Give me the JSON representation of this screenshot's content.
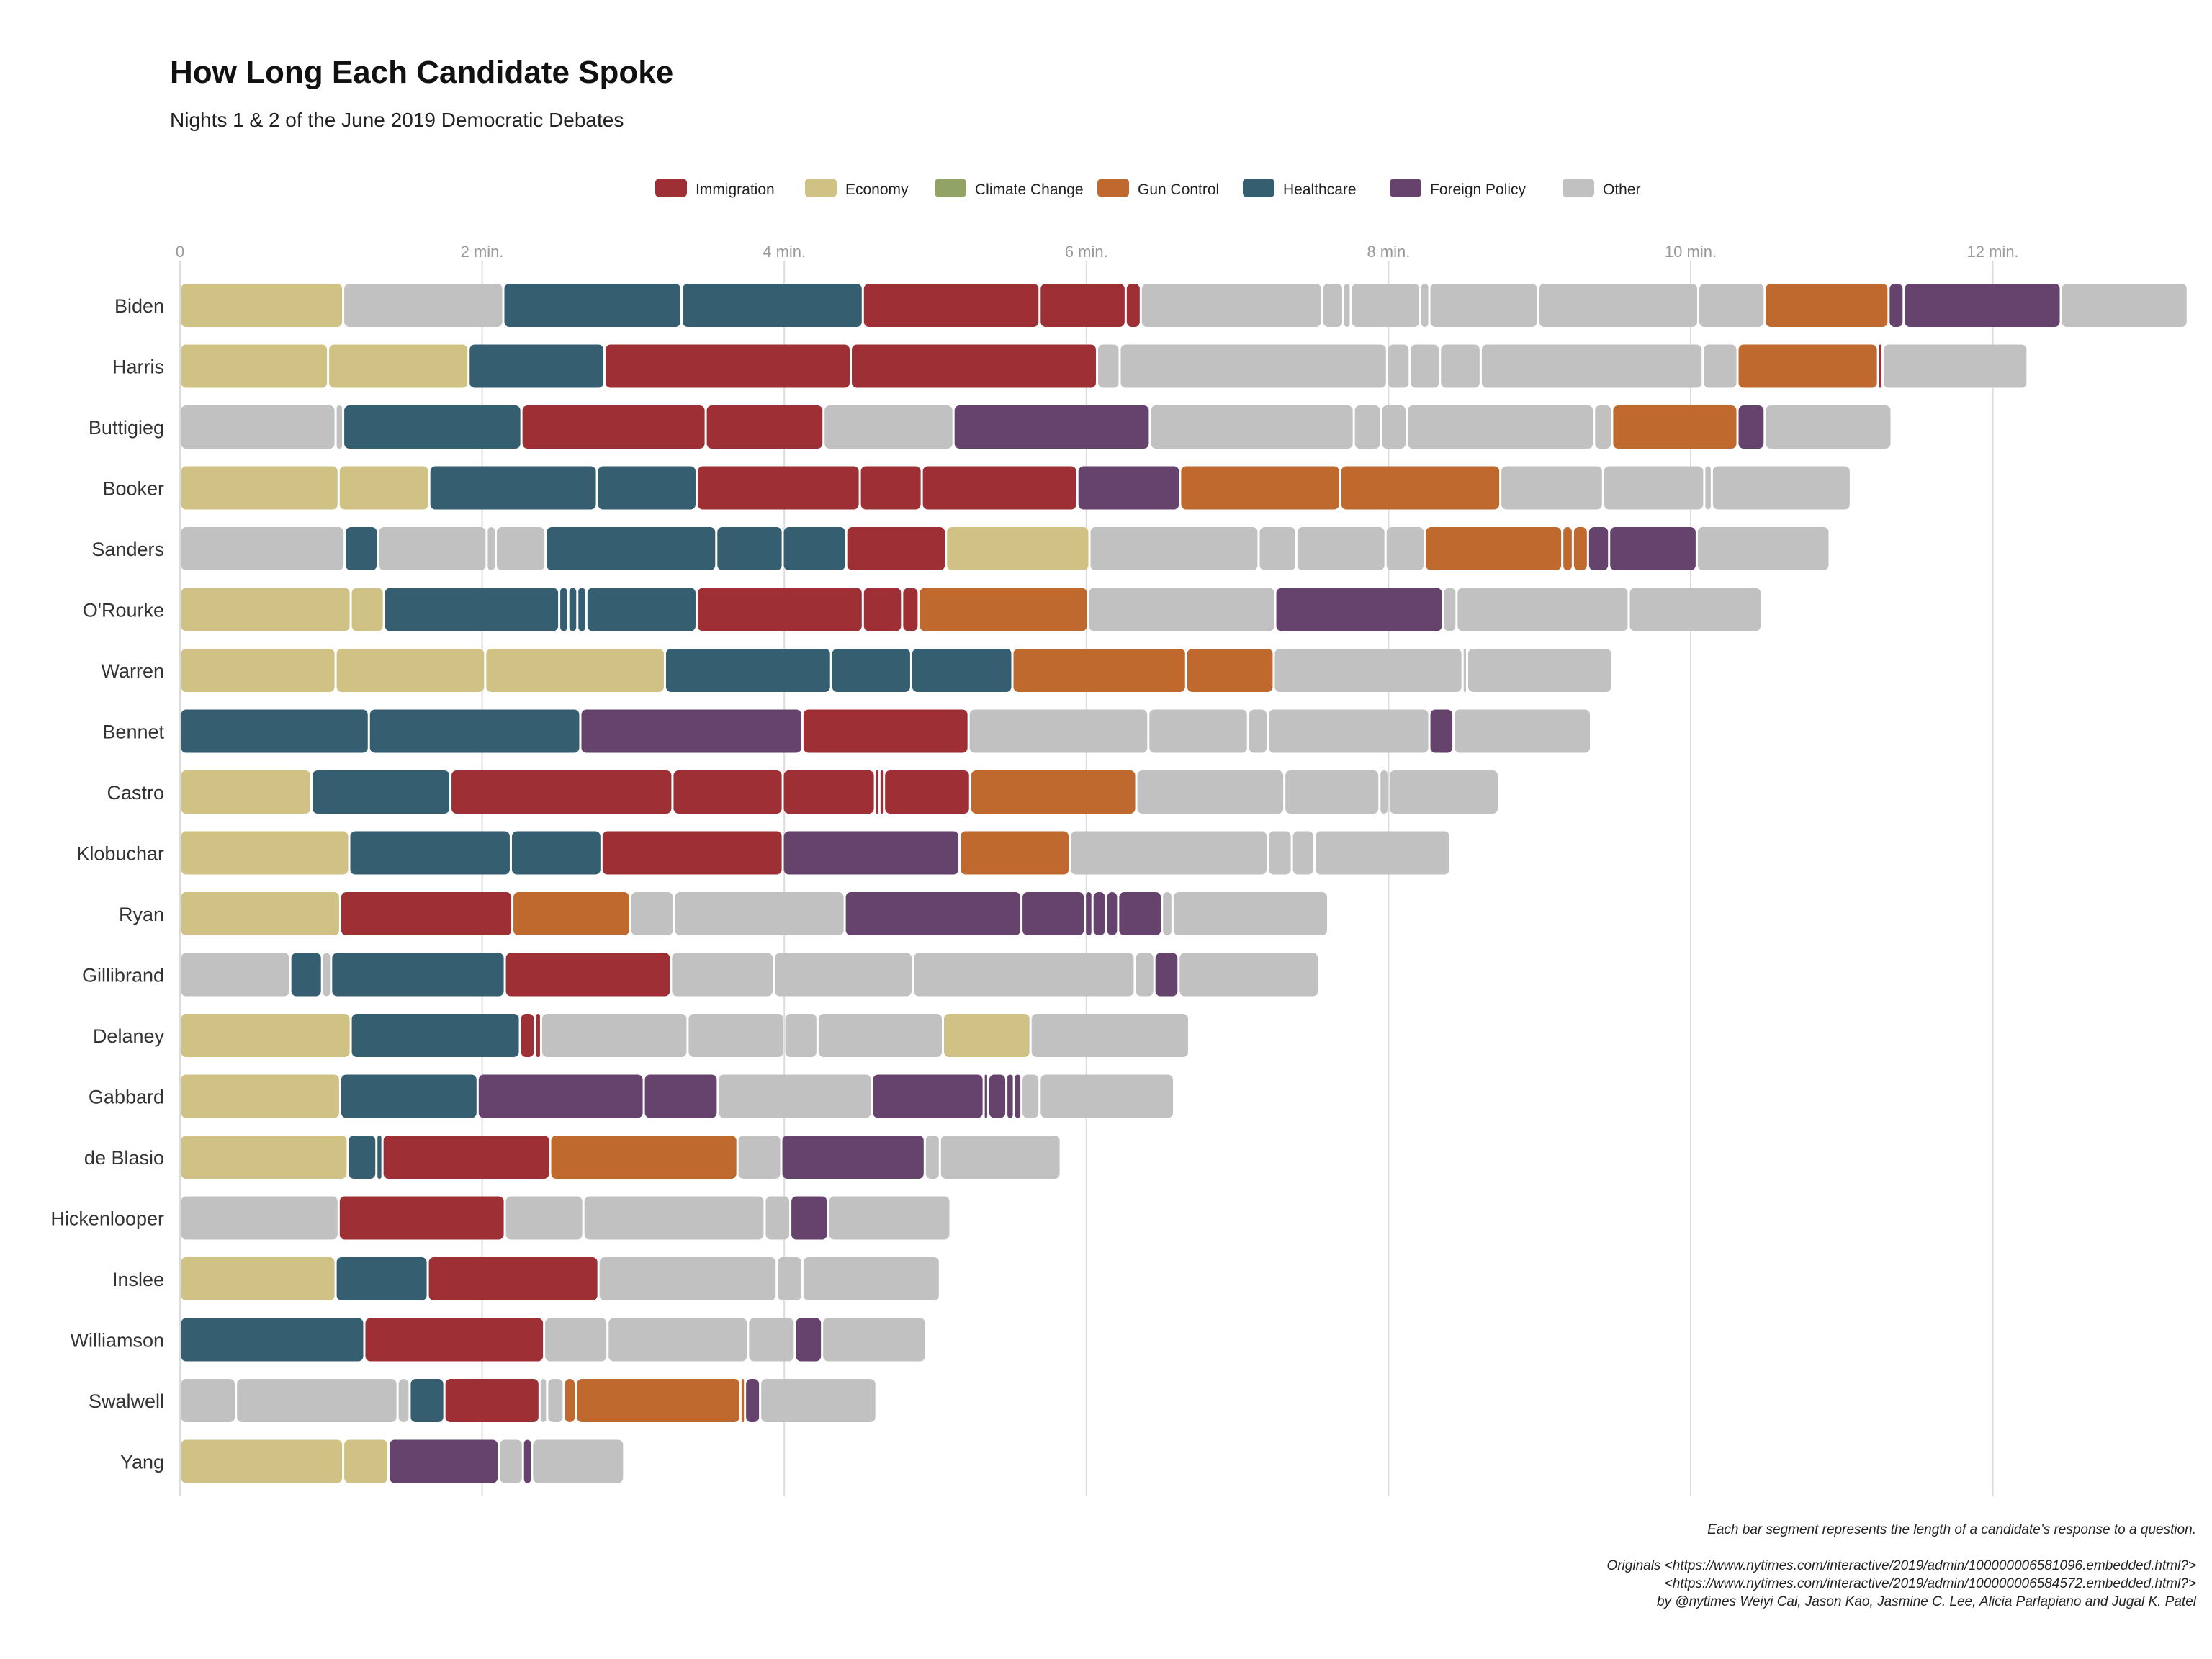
{
  "colors": {
    "Immigration": "#9e3035",
    "Economy": "#d0c285",
    "Climate Change": "#93a366",
    "Gun Control": "#bf692e",
    "Healthcare": "#355f70",
    "Foreign Policy": "#66436d",
    "Other": "#c1c1c1"
  },
  "chart_data": {
    "type": "bar",
    "orientation": "horizontal-stacked",
    "title": "How Long Each Candidate Spoke",
    "subtitle": "Nights 1 & 2 of the June 2019 Democratic Debates",
    "x_unit": "minutes",
    "xlim": [
      0,
      13.3
    ],
    "x_ticks": [
      0,
      2,
      4,
      6,
      8,
      10,
      12
    ],
    "x_tick_labels": [
      "0",
      "2 min.",
      "4 min.",
      "6 min.",
      "8 min.",
      "10 min.",
      "12 min."
    ],
    "legend": [
      "Immigration",
      "Economy",
      "Climate Change",
      "Gun Control",
      "Healthcare",
      "Foreign Policy",
      "Other"
    ],
    "legend_position": "top",
    "grid": "vertical",
    "candidates": [
      {
        "name": "Biden",
        "segments": [
          [
            "Economy",
            1.08
          ],
          [
            "Other",
            1.06
          ],
          [
            "Healthcare",
            1.18
          ],
          [
            "Healthcare",
            1.2
          ],
          [
            "Immigration",
            1.17
          ],
          [
            "Immigration",
            0.57
          ],
          [
            "Immigration",
            0.1
          ],
          [
            "Other",
            1.2
          ],
          [
            "Other",
            0.14
          ],
          [
            "Other",
            0.05
          ],
          [
            "Other",
            0.46
          ],
          [
            "Other",
            0.06
          ],
          [
            "Other",
            0.72
          ],
          [
            "Other",
            1.06
          ],
          [
            "Other",
            0.44
          ],
          [
            "Gun Control",
            0.82
          ],
          [
            "Foreign Policy",
            0.1
          ],
          [
            "Foreign Policy",
            1.04
          ],
          [
            "Other",
            0.84
          ]
        ]
      },
      {
        "name": "Harris",
        "segments": [
          [
            "Economy",
            0.98
          ],
          [
            "Economy",
            0.93
          ],
          [
            "Healthcare",
            0.9
          ],
          [
            "Immigration",
            1.63
          ],
          [
            "Immigration",
            1.63
          ],
          [
            "Other",
            0.15
          ],
          [
            "Other",
            1.77
          ],
          [
            "Other",
            0.15
          ],
          [
            "Other",
            0.2
          ],
          [
            "Other",
            0.27
          ],
          [
            "Other",
            1.47
          ],
          [
            "Other",
            0.23
          ],
          [
            "Gun Control",
            0.93
          ],
          [
            "Immigration",
            0.03
          ],
          [
            "Other",
            0.96
          ]
        ]
      },
      {
        "name": "Buttigieg",
        "segments": [
          [
            "Other",
            1.03
          ],
          [
            "Other",
            0.05
          ],
          [
            "Healthcare",
            1.18
          ],
          [
            "Immigration",
            1.22
          ],
          [
            "Immigration",
            0.78
          ],
          [
            "Other",
            0.86
          ],
          [
            "Foreign Policy",
            1.3
          ],
          [
            "Other",
            1.35
          ],
          [
            "Other",
            0.18
          ],
          [
            "Other",
            0.17
          ],
          [
            "Other",
            1.24
          ],
          [
            "Other",
            0.12
          ],
          [
            "Gun Control",
            0.83
          ],
          [
            "Foreign Policy",
            0.18
          ],
          [
            "Other",
            0.84
          ]
        ]
      },
      {
        "name": "Booker",
        "segments": [
          [
            "Economy",
            1.05
          ],
          [
            "Economy",
            0.6
          ],
          [
            "Healthcare",
            1.11
          ],
          [
            "Healthcare",
            0.66
          ],
          [
            "Immigration",
            1.08
          ],
          [
            "Immigration",
            0.41
          ],
          [
            "Immigration",
            1.03
          ],
          [
            "Foreign Policy",
            0.68
          ],
          [
            "Gun Control",
            1.06
          ],
          [
            "Gun Control",
            1.06
          ],
          [
            "Other",
            0.68
          ],
          [
            "Other",
            0.67
          ],
          [
            "Other",
            0.05
          ],
          [
            "Other",
            0.92
          ]
        ]
      },
      {
        "name": "Sanders",
        "segments": [
          [
            "Other",
            1.09
          ],
          [
            "Healthcare",
            0.22
          ],
          [
            "Other",
            0.72
          ],
          [
            "Other",
            0.06
          ],
          [
            "Other",
            0.33
          ],
          [
            "Healthcare",
            1.13
          ],
          [
            "Healthcare",
            0.44
          ],
          [
            "Healthcare",
            0.42
          ],
          [
            "Immigration",
            0.66
          ],
          [
            "Economy",
            0.95
          ],
          [
            "Other",
            1.12
          ],
          [
            "Other",
            0.25
          ],
          [
            "Other",
            0.59
          ],
          [
            "Other",
            0.26
          ],
          [
            "Gun Control",
            0.91
          ],
          [
            "Gun Control",
            0.07
          ],
          [
            "Gun Control",
            0.1
          ],
          [
            "Foreign Policy",
            0.14
          ],
          [
            "Foreign Policy",
            0.58
          ],
          [
            "Other",
            0.88
          ]
        ]
      },
      {
        "name": "O'Rourke",
        "segments": [
          [
            "Economy",
            1.13
          ],
          [
            "Economy",
            0.22
          ],
          [
            "Healthcare",
            1.16
          ],
          [
            "Healthcare",
            0.06
          ],
          [
            "Healthcare",
            0.06
          ],
          [
            "Healthcare",
            0.06
          ],
          [
            "Healthcare",
            0.73
          ],
          [
            "Immigration",
            1.1
          ],
          [
            "Immigration",
            0.26
          ],
          [
            "Immigration",
            0.11
          ],
          [
            "Gun Control",
            1.12
          ],
          [
            "Other",
            1.24
          ],
          [
            "Foreign Policy",
            1.11
          ],
          [
            "Other",
            0.09
          ],
          [
            "Other",
            1.14
          ],
          [
            "Other",
            0.88
          ]
        ]
      },
      {
        "name": "Warren",
        "segments": [
          [
            "Economy",
            1.03
          ],
          [
            "Economy",
            0.99
          ],
          [
            "Economy",
            1.19
          ],
          [
            "Healthcare",
            1.1
          ],
          [
            "Healthcare",
            0.53
          ],
          [
            "Healthcare",
            0.67
          ],
          [
            "Gun Control",
            1.15
          ],
          [
            "Gun Control",
            0.58
          ],
          [
            "Other",
            1.25
          ],
          [
            "Other",
            0.03
          ],
          [
            "Other",
            0.96
          ]
        ]
      },
      {
        "name": "Bennet",
        "segments": [
          [
            "Healthcare",
            1.25
          ],
          [
            "Healthcare",
            1.4
          ],
          [
            "Foreign Policy",
            1.47
          ],
          [
            "Immigration",
            1.1
          ],
          [
            "Other",
            1.19
          ],
          [
            "Other",
            0.66
          ],
          [
            "Other",
            0.13
          ],
          [
            "Other",
            1.07
          ],
          [
            "Foreign Policy",
            0.16
          ],
          [
            "Other",
            0.91
          ]
        ]
      },
      {
        "name": "Castro",
        "segments": [
          [
            "Economy",
            0.87
          ],
          [
            "Healthcare",
            0.92
          ],
          [
            "Immigration",
            1.47
          ],
          [
            "Immigration",
            0.73
          ],
          [
            "Immigration",
            0.61
          ],
          [
            "Immigration",
            0.03
          ],
          [
            "Immigration",
            0.03
          ],
          [
            "Immigration",
            0.57
          ],
          [
            "Gun Control",
            1.1
          ],
          [
            "Other",
            0.98
          ],
          [
            "Other",
            0.63
          ],
          [
            "Other",
            0.06
          ],
          [
            "Other",
            0.73
          ]
        ]
      },
      {
        "name": "Klobuchar",
        "segments": [
          [
            "Economy",
            1.12
          ],
          [
            "Healthcare",
            1.07
          ],
          [
            "Healthcare",
            0.6
          ],
          [
            "Immigration",
            1.2
          ],
          [
            "Foreign Policy",
            1.17
          ],
          [
            "Gun Control",
            0.73
          ],
          [
            "Other",
            1.31
          ],
          [
            "Other",
            0.16
          ],
          [
            "Other",
            0.15
          ],
          [
            "Other",
            0.9
          ]
        ]
      },
      {
        "name": "Ryan",
        "segments": [
          [
            "Economy",
            1.06
          ],
          [
            "Immigration",
            1.14
          ],
          [
            "Gun Control",
            0.78
          ],
          [
            "Other",
            0.29
          ],
          [
            "Other",
            1.13
          ],
          [
            "Foreign Policy",
            1.17
          ],
          [
            "Foreign Policy",
            0.42
          ],
          [
            "Foreign Policy",
            0.05
          ],
          [
            "Foreign Policy",
            0.09
          ],
          [
            "Foreign Policy",
            0.08
          ],
          [
            "Foreign Policy",
            0.29
          ],
          [
            "Other",
            0.07
          ],
          [
            "Other",
            1.03
          ]
        ]
      },
      {
        "name": "Gillibrand",
        "segments": [
          [
            "Other",
            0.73
          ],
          [
            "Healthcare",
            0.21
          ],
          [
            "Other",
            0.06
          ],
          [
            "Healthcare",
            1.15
          ],
          [
            "Immigration",
            1.1
          ],
          [
            "Other",
            0.68
          ],
          [
            "Other",
            0.92
          ],
          [
            "Other",
            1.47
          ],
          [
            "Other",
            0.13
          ],
          [
            "Foreign Policy",
            0.16
          ],
          [
            "Other",
            0.93
          ]
        ]
      },
      {
        "name": "Delaney",
        "segments": [
          [
            "Economy",
            1.13
          ],
          [
            "Healthcare",
            1.12
          ],
          [
            "Immigration",
            0.1
          ],
          [
            "Immigration",
            0.04
          ],
          [
            "Other",
            0.97
          ],
          [
            "Other",
            0.64
          ],
          [
            "Other",
            0.22
          ],
          [
            "Other",
            0.83
          ],
          [
            "Economy",
            0.58
          ],
          [
            "Other",
            1.05
          ]
        ]
      },
      {
        "name": "Gabbard",
        "segments": [
          [
            "Economy",
            1.06
          ],
          [
            "Healthcare",
            0.91
          ],
          [
            "Foreign Policy",
            1.1
          ],
          [
            "Foreign Policy",
            0.49
          ],
          [
            "Other",
            1.02
          ],
          [
            "Foreign Policy",
            0.74
          ],
          [
            "Foreign Policy",
            0.03
          ],
          [
            "Foreign Policy",
            0.12
          ],
          [
            "Foreign Policy",
            0.05
          ],
          [
            "Foreign Policy",
            0.05
          ],
          [
            "Other",
            0.12
          ],
          [
            "Other",
            0.89
          ]
        ]
      },
      {
        "name": "de Blasio",
        "segments": [
          [
            "Economy",
            1.11
          ],
          [
            "Healthcare",
            0.19
          ],
          [
            "Healthcare",
            0.04
          ],
          [
            "Immigration",
            1.11
          ],
          [
            "Gun Control",
            1.24
          ],
          [
            "Other",
            0.29
          ],
          [
            "Foreign Policy",
            0.95
          ],
          [
            "Other",
            0.1
          ],
          [
            "Other",
            0.8
          ]
        ]
      },
      {
        "name": "Hickenlooper",
        "segments": [
          [
            "Other",
            1.05
          ],
          [
            "Immigration",
            1.1
          ],
          [
            "Other",
            0.52
          ],
          [
            "Other",
            1.2
          ],
          [
            "Other",
            0.17
          ],
          [
            "Foreign Policy",
            0.25
          ],
          [
            "Other",
            0.81
          ]
        ]
      },
      {
        "name": "Inslee",
        "segments": [
          [
            "Economy",
            1.03
          ],
          [
            "Healthcare",
            0.61
          ],
          [
            "Immigration",
            1.13
          ],
          [
            "Other",
            1.18
          ],
          [
            "Other",
            0.17
          ],
          [
            "Other",
            0.91
          ]
        ]
      },
      {
        "name": "Williamson",
        "segments": [
          [
            "Healthcare",
            1.22
          ],
          [
            "Immigration",
            1.19
          ],
          [
            "Other",
            0.42
          ],
          [
            "Other",
            0.93
          ],
          [
            "Other",
            0.31
          ],
          [
            "Foreign Policy",
            0.18
          ],
          [
            "Other",
            0.69
          ]
        ]
      },
      {
        "name": "Swalwell",
        "segments": [
          [
            "Other",
            0.37
          ],
          [
            "Other",
            1.07
          ],
          [
            "Other",
            0.08
          ],
          [
            "Healthcare",
            0.23
          ],
          [
            "Immigration",
            0.63
          ],
          [
            "Other",
            0.05
          ],
          [
            "Other",
            0.11
          ],
          [
            "Gun Control",
            0.08
          ],
          [
            "Gun Control",
            1.09
          ],
          [
            "Gun Control",
            0.03
          ],
          [
            "Foreign Policy",
            0.1
          ],
          [
            "Other",
            0.77
          ]
        ]
      },
      {
        "name": "Yang",
        "segments": [
          [
            "Economy",
            1.08
          ],
          [
            "Economy",
            0.3
          ],
          [
            "Foreign Policy",
            0.73
          ],
          [
            "Other",
            0.16
          ],
          [
            "Foreign Policy",
            0.06
          ],
          [
            "Other",
            0.61
          ]
        ]
      }
    ]
  },
  "captions": [
    "Each bar segment represents the length of a candidate’s response to a question.",
    "Originals <https://www.nytimes.com/interactive/2019/admin/100000006581096.embedded.html?>",
    "<https://www.nytimes.com/interactive/2019/admin/100000006584572.embedded.html?>",
    "by @nytimes Weiyi Cai, Jason Kao, Jasmine C. Lee, Alicia Parlapiano and Jugal K. Patel"
  ]
}
